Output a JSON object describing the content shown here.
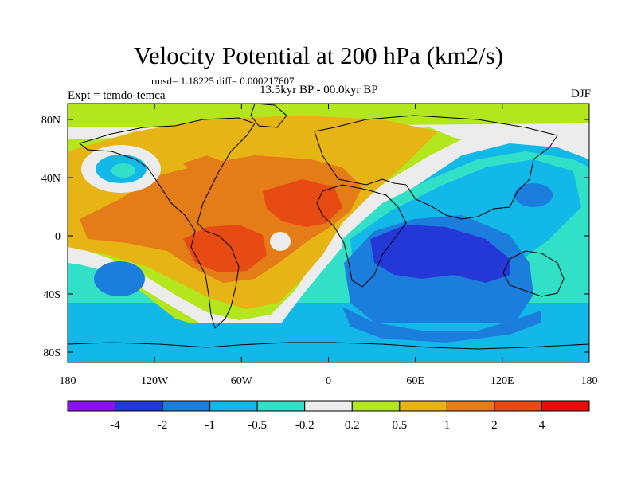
{
  "title": "Velocity Potential at 200 hPa (km2/s)",
  "stats": "rmsd= 1.18225 diff= 0.000217607",
  "period": "13.5kyr BP - 00.0kyr BP",
  "experiment": "Expt = temdo-temca",
  "season": "DJF",
  "axes": {
    "x_ticks": [
      "180",
      "120W",
      "60W",
      "0",
      "60E",
      "120E",
      "180"
    ],
    "y_ticks": [
      "80N",
      "40N",
      "0",
      "40S",
      "80S"
    ]
  },
  "colorbar": {
    "labels": [
      "-4",
      "-2",
      "-1",
      "-0.5",
      "-0.2",
      "0.2",
      "0.5",
      "1",
      "2",
      "4"
    ],
    "colors": [
      "#8a12f0",
      "#2438d8",
      "#1c7edc",
      "#12b8e8",
      "#32e0c8",
      "#ececec",
      "#b4e61e",
      "#e6b414",
      "#e47c18",
      "#e84a14",
      "#e80c0c"
    ]
  },
  "field_colors": {
    "deep_negative": "#2438d8",
    "negative": "#1c7edc",
    "weak_negative": "#12b8e8",
    "slight_negative": "#32e0c8",
    "neutral": "#ececec",
    "slight_positive": "#b4e61e",
    "positive": "#e6b414",
    "strong_positive": "#e47c18",
    "very_strong_positive": "#e84a14"
  }
}
